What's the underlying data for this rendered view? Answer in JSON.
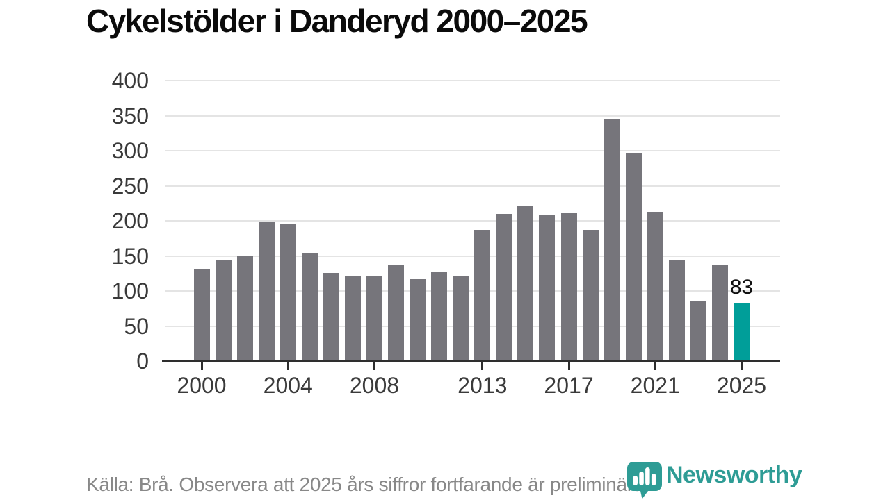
{
  "title": "Cykelstölder i Danderyd 2000–2025",
  "footer": {
    "source_note": "Källa: Brå. Observera att 2025 års siffror fortfarande är preliminära."
  },
  "branding": {
    "logo_text": "Newsworthy",
    "logo_icon": "newsworthy-pin-barchart-icon",
    "logo_color": "#2E9C95"
  },
  "chart_data": {
    "type": "bar",
    "title": "Cykelstölder i Danderyd 2000–2025",
    "xlabel": "",
    "ylabel": "",
    "years": [
      2000,
      2001,
      2002,
      2003,
      2004,
      2005,
      2006,
      2007,
      2008,
      2009,
      2010,
      2011,
      2012,
      2013,
      2014,
      2015,
      2016,
      2017,
      2018,
      2019,
      2020,
      2021,
      2022,
      2023,
      2024,
      2025
    ],
    "values": [
      131,
      144,
      150,
      198,
      195,
      153,
      126,
      121,
      121,
      137,
      117,
      128,
      121,
      187,
      210,
      221,
      209,
      212,
      187,
      345,
      296,
      213,
      144,
      85,
      138,
      83
    ],
    "highlight_year": 2025,
    "highlight_value_label": "83",
    "ylim": [
      0,
      400
    ],
    "yticks": [
      0,
      50,
      100,
      150,
      200,
      250,
      300,
      350,
      400
    ],
    "xtick_years": [
      2000,
      2004,
      2008,
      2013,
      2017,
      2021,
      2025
    ],
    "grid": "horizontal",
    "legend": "none",
    "bar_color": "#76757B",
    "highlight_color": "#009E99"
  }
}
